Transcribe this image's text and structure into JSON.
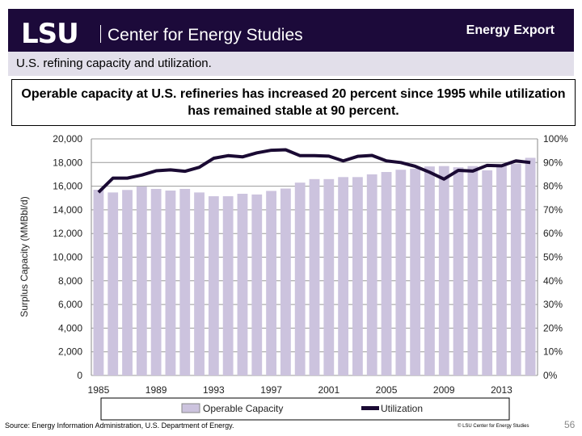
{
  "header": {
    "logo": "LSU",
    "org": "Center for Energy Studies",
    "section": "Energy Export"
  },
  "subtitle": "U.S. refining capacity and utilization.",
  "headline": "Operable capacity at U.S. refineries has increased 20 percent since 1995 while utilization has remained stable at 90 percent.",
  "footer": {
    "source": "Source:  Energy Information Administration, U.S. Department of Energy.",
    "copyright": "© LSU Center for Energy Studies",
    "page": "56"
  },
  "colors": {
    "header": "#1c0a3a",
    "bars": "#ccc3de",
    "line": "#1a0a33"
  },
  "chart_data": {
    "type": "bar+line",
    "ylabel": "Surplus Capacity (MMBbl/d)",
    "ylim": [
      0,
      20000
    ],
    "y2lim": [
      0,
      100
    ],
    "yticks": [
      "0",
      "2,000",
      "4,000",
      "6,000",
      "8,000",
      "10,000",
      "12,000",
      "14,000",
      "16,000",
      "18,000",
      "20,000"
    ],
    "y2ticks": [
      "0%",
      "10%",
      "20%",
      "30%",
      "40%",
      "50%",
      "60%",
      "70%",
      "80%",
      "90%",
      "100%"
    ],
    "xticks": [
      "1985",
      "1989",
      "1993",
      "1997",
      "2001",
      "2005",
      "2009",
      "2013"
    ],
    "grid": true,
    "legend": "bottom",
    "categories": [
      1985,
      1986,
      1987,
      1988,
      1989,
      1990,
      1991,
      1992,
      1993,
      1994,
      1995,
      1996,
      1997,
      1998,
      1999,
      2000,
      2001,
      2002,
      2003,
      2004,
      2005,
      2006,
      2007,
      2008,
      2009,
      2010,
      2011,
      2012,
      2013,
      2014,
      2015
    ],
    "series": [
      {
        "name": "Operable Capacity",
        "axis": "left",
        "type": "bar",
        "values": [
          15700,
          15470,
          15680,
          15970,
          15770,
          15630,
          15770,
          15470,
          15150,
          15150,
          15360,
          15300,
          15600,
          15800,
          16300,
          16600,
          16600,
          16770,
          16770,
          17000,
          17200,
          17390,
          17480,
          17670,
          17700,
          17600,
          17700,
          17340,
          17800,
          17900,
          18400
        ]
      },
      {
        "name": "Utilization",
        "axis": "right",
        "type": "line",
        "values": [
          77.4,
          83.4,
          83.4,
          84.7,
          86.5,
          86.9,
          86.3,
          88.0,
          91.8,
          92.9,
          92.4,
          94.1,
          95.2,
          95.4,
          92.9,
          92.9,
          92.7,
          90.7,
          92.6,
          93.0,
          90.7,
          90.0,
          88.4,
          85.9,
          83.0,
          86.7,
          86.4,
          88.8,
          88.6,
          90.7,
          90.0
        ]
      }
    ]
  }
}
